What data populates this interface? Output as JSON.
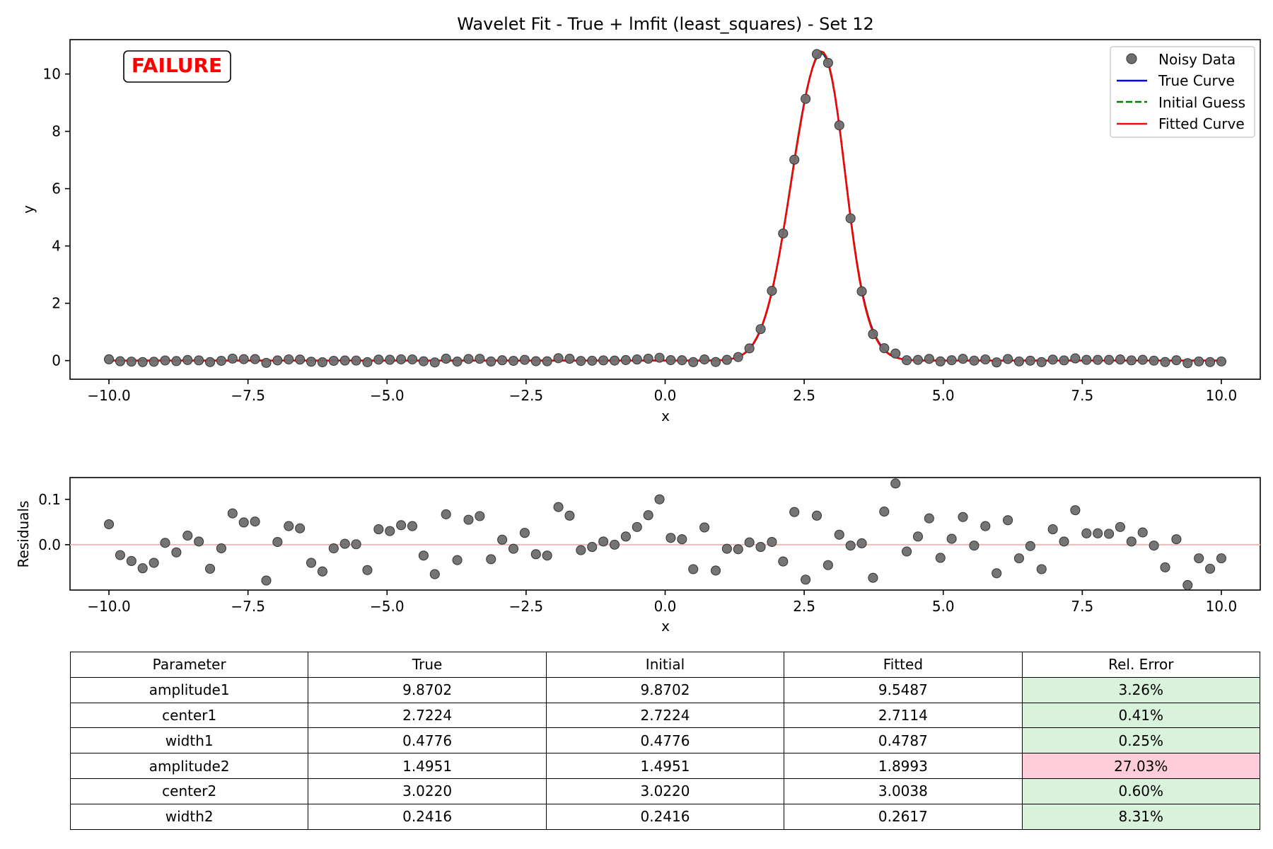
{
  "chart_data": [
    {
      "type": "scatter",
      "title": "Wavelet Fit - True + lmfit (least_squares) - Set 12",
      "xlabel": "x",
      "ylabel": "y",
      "xlim": [
        -10.7,
        10.7
      ],
      "ylim": [
        -0.65,
        11.2
      ],
      "xticks": [
        -10.0,
        -7.5,
        -5.0,
        -2.5,
        0.0,
        2.5,
        5.0,
        7.5,
        10.0
      ],
      "xtick_labels": [
        "−10.0",
        "−7.5",
        "−5.0",
        "−2.5",
        "0.0",
        "2.5",
        "5.0",
        "7.5",
        "10.0"
      ],
      "yticks": [
        0,
        2,
        4,
        6,
        8,
        10
      ],
      "ytick_labels": [
        "0",
        "2",
        "4",
        "6",
        "8",
        "10"
      ],
      "grid": false,
      "legend_position": "top-right",
      "status_label": "FAILURE",
      "status_color": "#ff0000",
      "series": [
        {
          "name": "Noisy Data",
          "style": "markers",
          "color": "#6e6e6e"
        },
        {
          "name": "True Curve",
          "style": "solid",
          "color": "#0000ff",
          "params": {
            "amplitude1": 9.8702,
            "center1": 2.7224,
            "width1": 0.4776,
            "amplitude2": 1.4951,
            "center2": 3.022,
            "width2": 0.2416
          }
        },
        {
          "name": "Initial Guess",
          "style": "dashed",
          "color": "#008000",
          "params": {
            "amplitude1": 9.8702,
            "center1": 2.7224,
            "width1": 0.4776,
            "amplitude2": 1.4951,
            "center2": 3.022,
            "width2": 0.2416
          }
        },
        {
          "name": "Fitted Curve",
          "style": "solid",
          "color": "#ff0000",
          "params": {
            "amplitude1": 9.5487,
            "center1": 2.7114,
            "width1": 0.4787,
            "amplitude2": 1.8993,
            "center2": 3.0038,
            "width2": 0.2617
          }
        }
      ]
    },
    {
      "type": "scatter",
      "title": "",
      "xlabel": "x",
      "ylabel": "Residuals",
      "xlim": [
        -10.7,
        10.7
      ],
      "ylim": [
        -0.1,
        0.148
      ],
      "xticks": [
        -10.0,
        -7.5,
        -5.0,
        -2.5,
        0.0,
        2.5,
        5.0,
        7.5,
        10.0
      ],
      "xtick_labels": [
        "−10.0",
        "−7.5",
        "−5.0",
        "−2.5",
        "0.0",
        "2.5",
        "5.0",
        "7.5",
        "10.0"
      ],
      "yticks": [
        0.0,
        0.1
      ],
      "ytick_labels": [
        "0.0",
        "0.1"
      ],
      "zero_line_color": "#f4b8b8",
      "marker_color": "#6e6e6e",
      "residuals": [
        0.045,
        -0.023,
        -0.036,
        -0.052,
        -0.04,
        0.004,
        -0.017,
        0.02,
        0.007,
        -0.053,
        -0.008,
        0.069,
        0.049,
        0.051,
        -0.079,
        0.006,
        0.041,
        0.036,
        -0.04,
        -0.059,
        -0.008,
        0.002,
        0.001,
        -0.056,
        0.034,
        0.03,
        0.043,
        0.041,
        -0.024,
        -0.065,
        0.067,
        -0.034,
        0.055,
        0.063,
        -0.032,
        0.011,
        -0.009,
        0.026,
        -0.021,
        -0.024,
        0.083,
        0.064,
        -0.012,
        -0.005,
        0.007,
        0.0,
        0.018,
        0.039,
        0.065,
        0.1,
        0.015,
        0.012,
        -0.054,
        0.038,
        -0.057,
        -0.009,
        -0.01,
        0.005,
        -0.005,
        0.006,
        -0.037,
        0.072,
        -0.077,
        0.064,
        -0.045,
        0.022,
        -0.002,
        0.003,
        -0.073,
        0.073,
        0.135,
        -0.015,
        0.018,
        0.058,
        -0.029,
        0.013,
        0.061,
        -0.002,
        0.041,
        -0.063,
        0.054,
        -0.03,
        -0.003,
        -0.054,
        0.034,
        0.007,
        0.076,
        0.025,
        0.025,
        0.024,
        0.039,
        0.007,
        0.027,
        -0.002,
        -0.05,
        0.012,
        -0.089,
        -0.03,
        -0.053,
        -0.03
      ]
    }
  ],
  "table": {
    "headers": [
      "Parameter",
      "True",
      "Initial",
      "Fitted",
      "Rel. Error"
    ],
    "rows": [
      {
        "cells": [
          "amplitude1",
          "9.8702",
          "9.8702",
          "9.5487",
          "3.26%"
        ],
        "error_color": "#d8f2dc"
      },
      {
        "cells": [
          "center1",
          "2.7224",
          "2.7224",
          "2.7114",
          "0.41%"
        ],
        "error_color": "#d8f2dc"
      },
      {
        "cells": [
          "width1",
          "0.4776",
          "0.4776",
          "0.4787",
          "0.25%"
        ],
        "error_color": "#d8f2dc"
      },
      {
        "cells": [
          "amplitude2",
          "1.4951",
          "1.4951",
          "1.8993",
          "27.03%"
        ],
        "error_color": "#ffccd9"
      },
      {
        "cells": [
          "center2",
          "3.0220",
          "3.0220",
          "3.0038",
          "0.60%"
        ],
        "error_color": "#d8f2dc"
      },
      {
        "cells": [
          "width2",
          "0.2416",
          "0.2416",
          "0.2617",
          "8.31%"
        ],
        "error_color": "#d8f2dc"
      }
    ]
  }
}
